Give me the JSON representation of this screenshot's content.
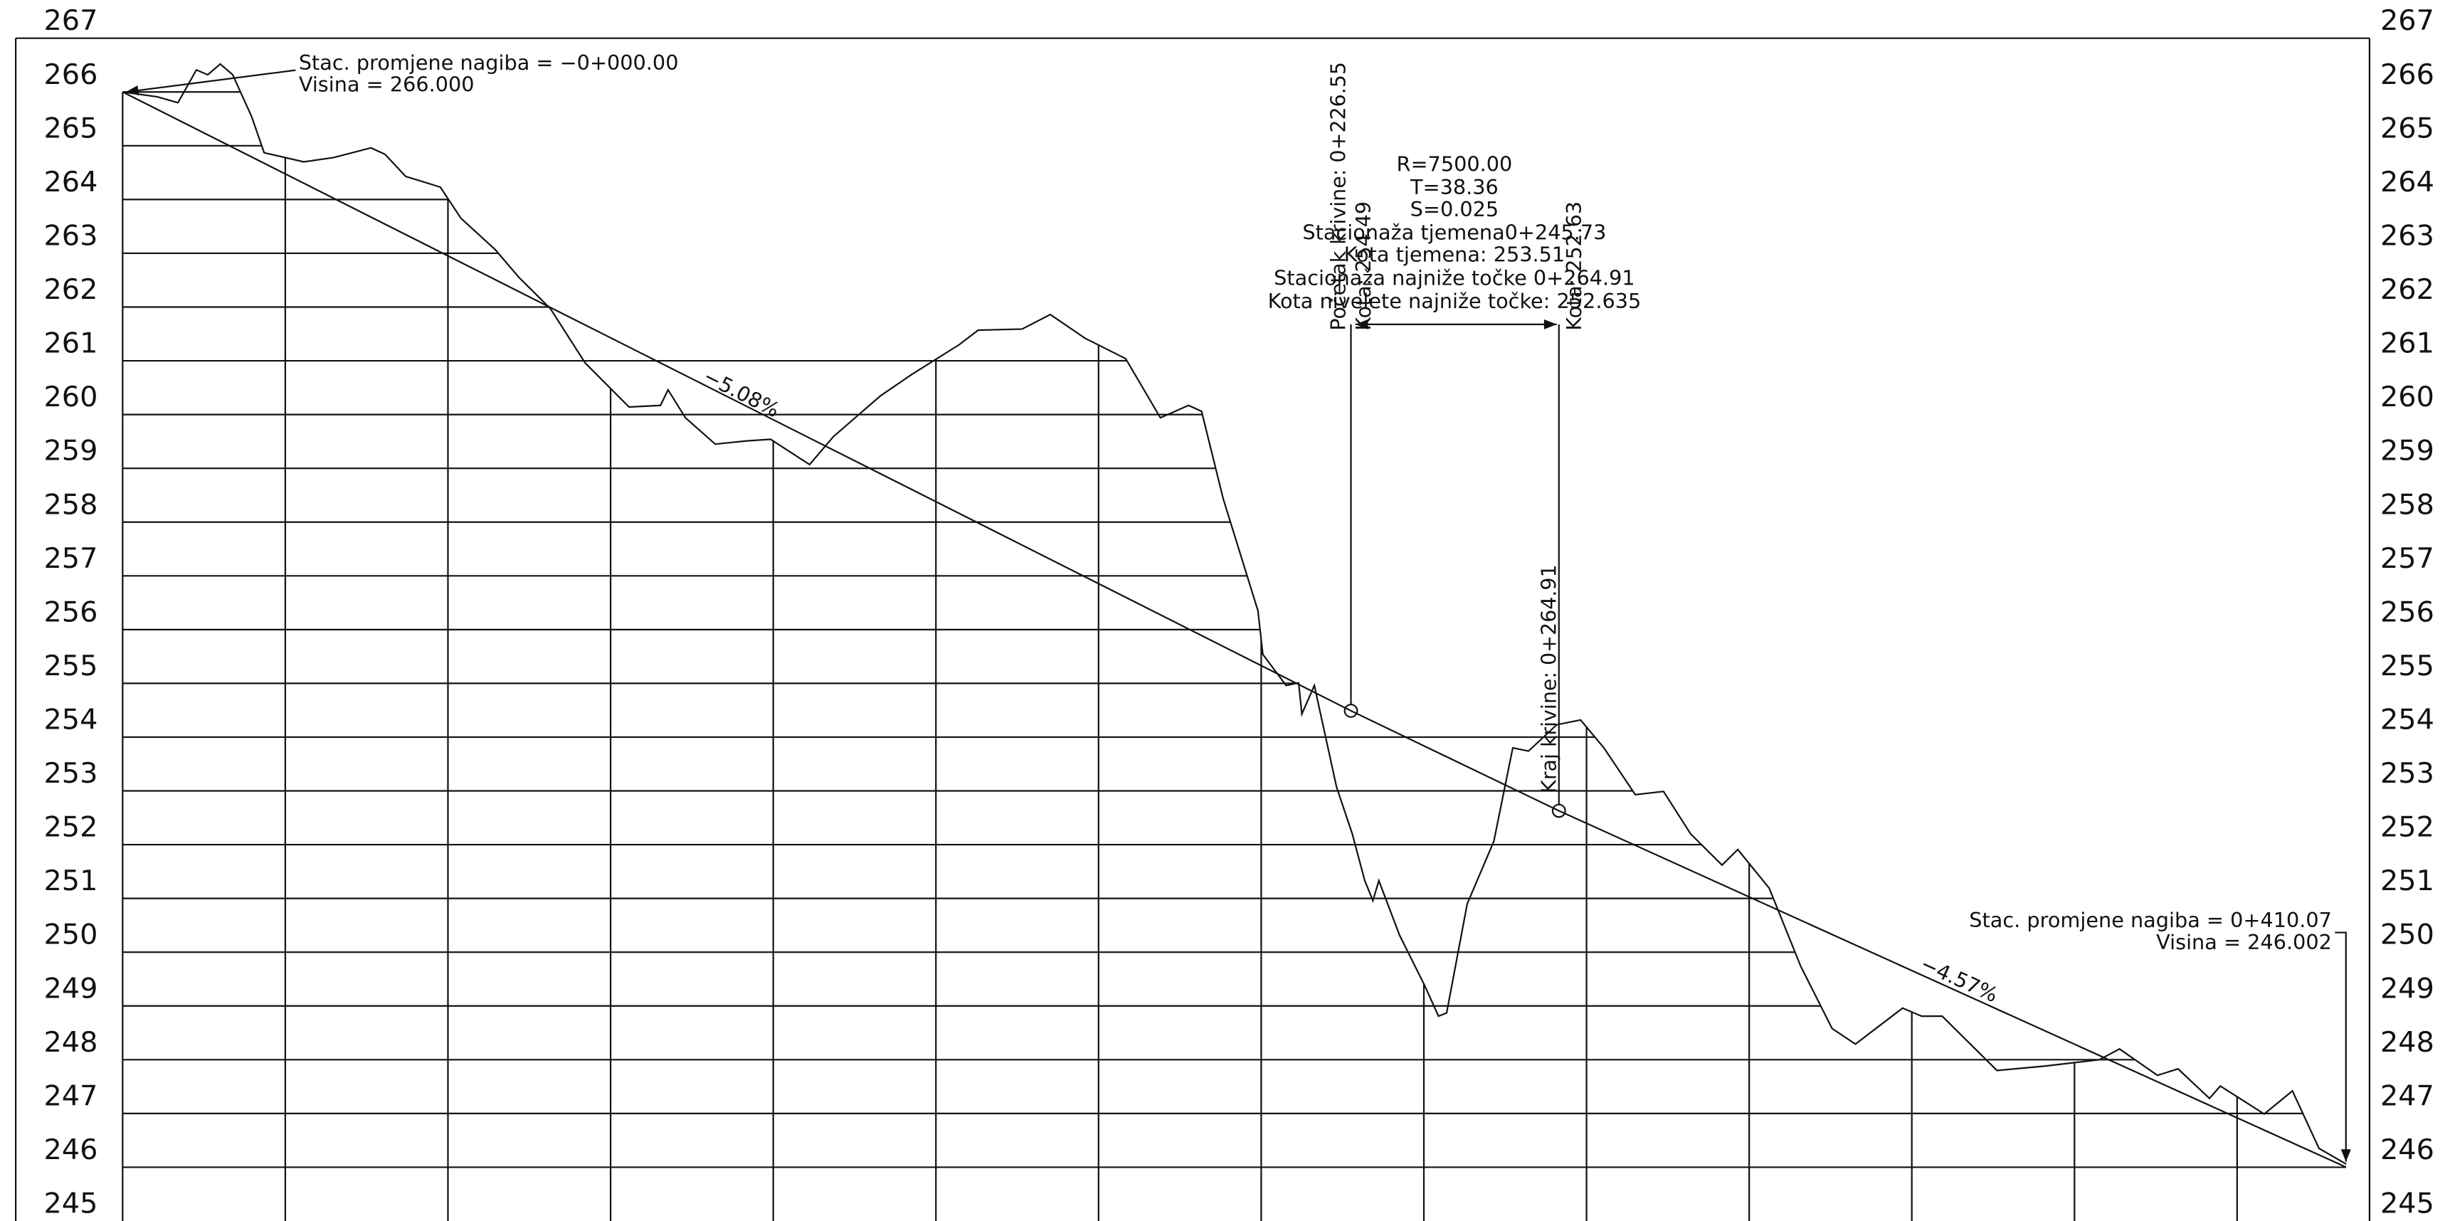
{
  "chart_data": {
    "type": "line",
    "xlim": [
      0,
      410.07
    ],
    "ylim": [
      245,
      267
    ],
    "yticks": [
      245,
      246,
      247,
      248,
      249,
      250,
      251,
      252,
      253,
      254,
      255,
      256,
      257,
      258,
      259,
      260,
      261,
      262,
      263,
      264,
      265,
      266,
      267
    ],
    "xticks": [
      30,
      60,
      90,
      120,
      150,
      180,
      210,
      240,
      270,
      300,
      330,
      360,
      390
    ],
    "grid": true,
    "series": [
      {
        "color": "#111111",
        "x": [
          0,
          6.4,
          10.2,
          13.6,
          15.7,
          18.0,
          20.3,
          23.8,
          26.1,
          33.4,
          38.9,
          45.8,
          48.4,
          52.2,
          58.6,
          62.4,
          68.7,
          73.1,
          78.9,
          85.3,
          93.4,
          99.2,
          100.6,
          103.8,
          109.3,
          115.1,
          119.5,
          126.7,
          131.1,
          139.8,
          145.6,
          154.3,
          157.8,
          165.9,
          171.1,
          177.5,
          185.0,
          191.4,
          196.6,
          199.0,
          203.0,
          209.4,
          210.3,
          214.6,
          216.9,
          217.5,
          219.8,
          223.9,
          226.8,
          229.1,
          230.6,
          231.7,
          235.5,
          240.1,
          242.7,
          244.2,
          248.0,
          252.9,
          256.4,
          259.3,
          264.5,
          268.9,
          273.2,
          279.0,
          284.2,
          289.2,
          295.0,
          297.9,
          303.7,
          309.5,
          315.3,
          319.6,
          328.3,
          331.8,
          335.6,
          345.7,
          354.4,
          364.6,
          368.3,
          375.3,
          379.1,
          384.9,
          386.9,
          395.0,
          400.2,
          405.1,
          410.1
        ],
        "values": [
          266.0,
          265.91,
          265.8,
          266.41,
          266.32,
          266.52,
          266.32,
          265.54,
          264.87,
          264.7,
          264.78,
          264.96,
          264.84,
          264.43,
          264.23,
          263.65,
          263.07,
          262.55,
          261.97,
          260.96,
          260.14,
          260.17,
          260.46,
          259.94,
          259.45,
          259.51,
          259.54,
          259.07,
          259.59,
          260.35,
          260.75,
          261.3,
          261.57,
          261.59,
          261.86,
          261.42,
          261.04,
          259.94,
          260.17,
          260.06,
          258.43,
          256.35,
          255.54,
          254.96,
          255.01,
          254.43,
          254.96,
          253.07,
          252.2,
          251.33,
          250.96,
          251.33,
          250.32,
          249.39,
          248.81,
          248.87,
          250.9,
          252.06,
          253.8,
          253.74,
          254.23,
          254.32,
          253.8,
          252.93,
          252.99,
          252.2,
          251.62,
          251.91,
          251.19,
          249.74,
          248.58,
          248.29,
          248.96,
          248.81,
          248.81,
          247.8,
          247.88,
          248.0,
          248.2,
          247.71,
          247.83,
          247.28,
          247.51,
          246.99,
          247.42,
          246.35,
          246.06
        ]
      },
      {
        "color": "#111111",
        "x": [
          0,
          226.55,
          264.91,
          410.07
        ],
        "values": [
          266.0,
          254.49,
          252.63,
          246.002
        ]
      }
    ],
    "annotations": {
      "start": [
        "Stac. promjene nagiba = −0+000.00",
        "Visina =  266.000"
      ],
      "curve": [
        "R=7500.00",
        "T=38.36",
        "S=0.025",
        "Stacionaža tjemena0+245.73",
        "Kota tjemena: 253.51",
        "Stacionaža najniže točke 0+264.91",
        "Kota nivelete najniže točke:  252.635"
      ],
      "curve_start": [
        "Početak krivine:  0+226.55",
        "Kota:  254.49"
      ],
      "curve_end": [
        "Kraj krivine:  0+264.91",
        "Kota:  252.63"
      ],
      "grades": [
        "−5.08%",
        "−4.57%"
      ],
      "end": [
        "Stac. promjene nagiba = 0+410.07",
        "Visina =   246.002"
      ]
    }
  }
}
